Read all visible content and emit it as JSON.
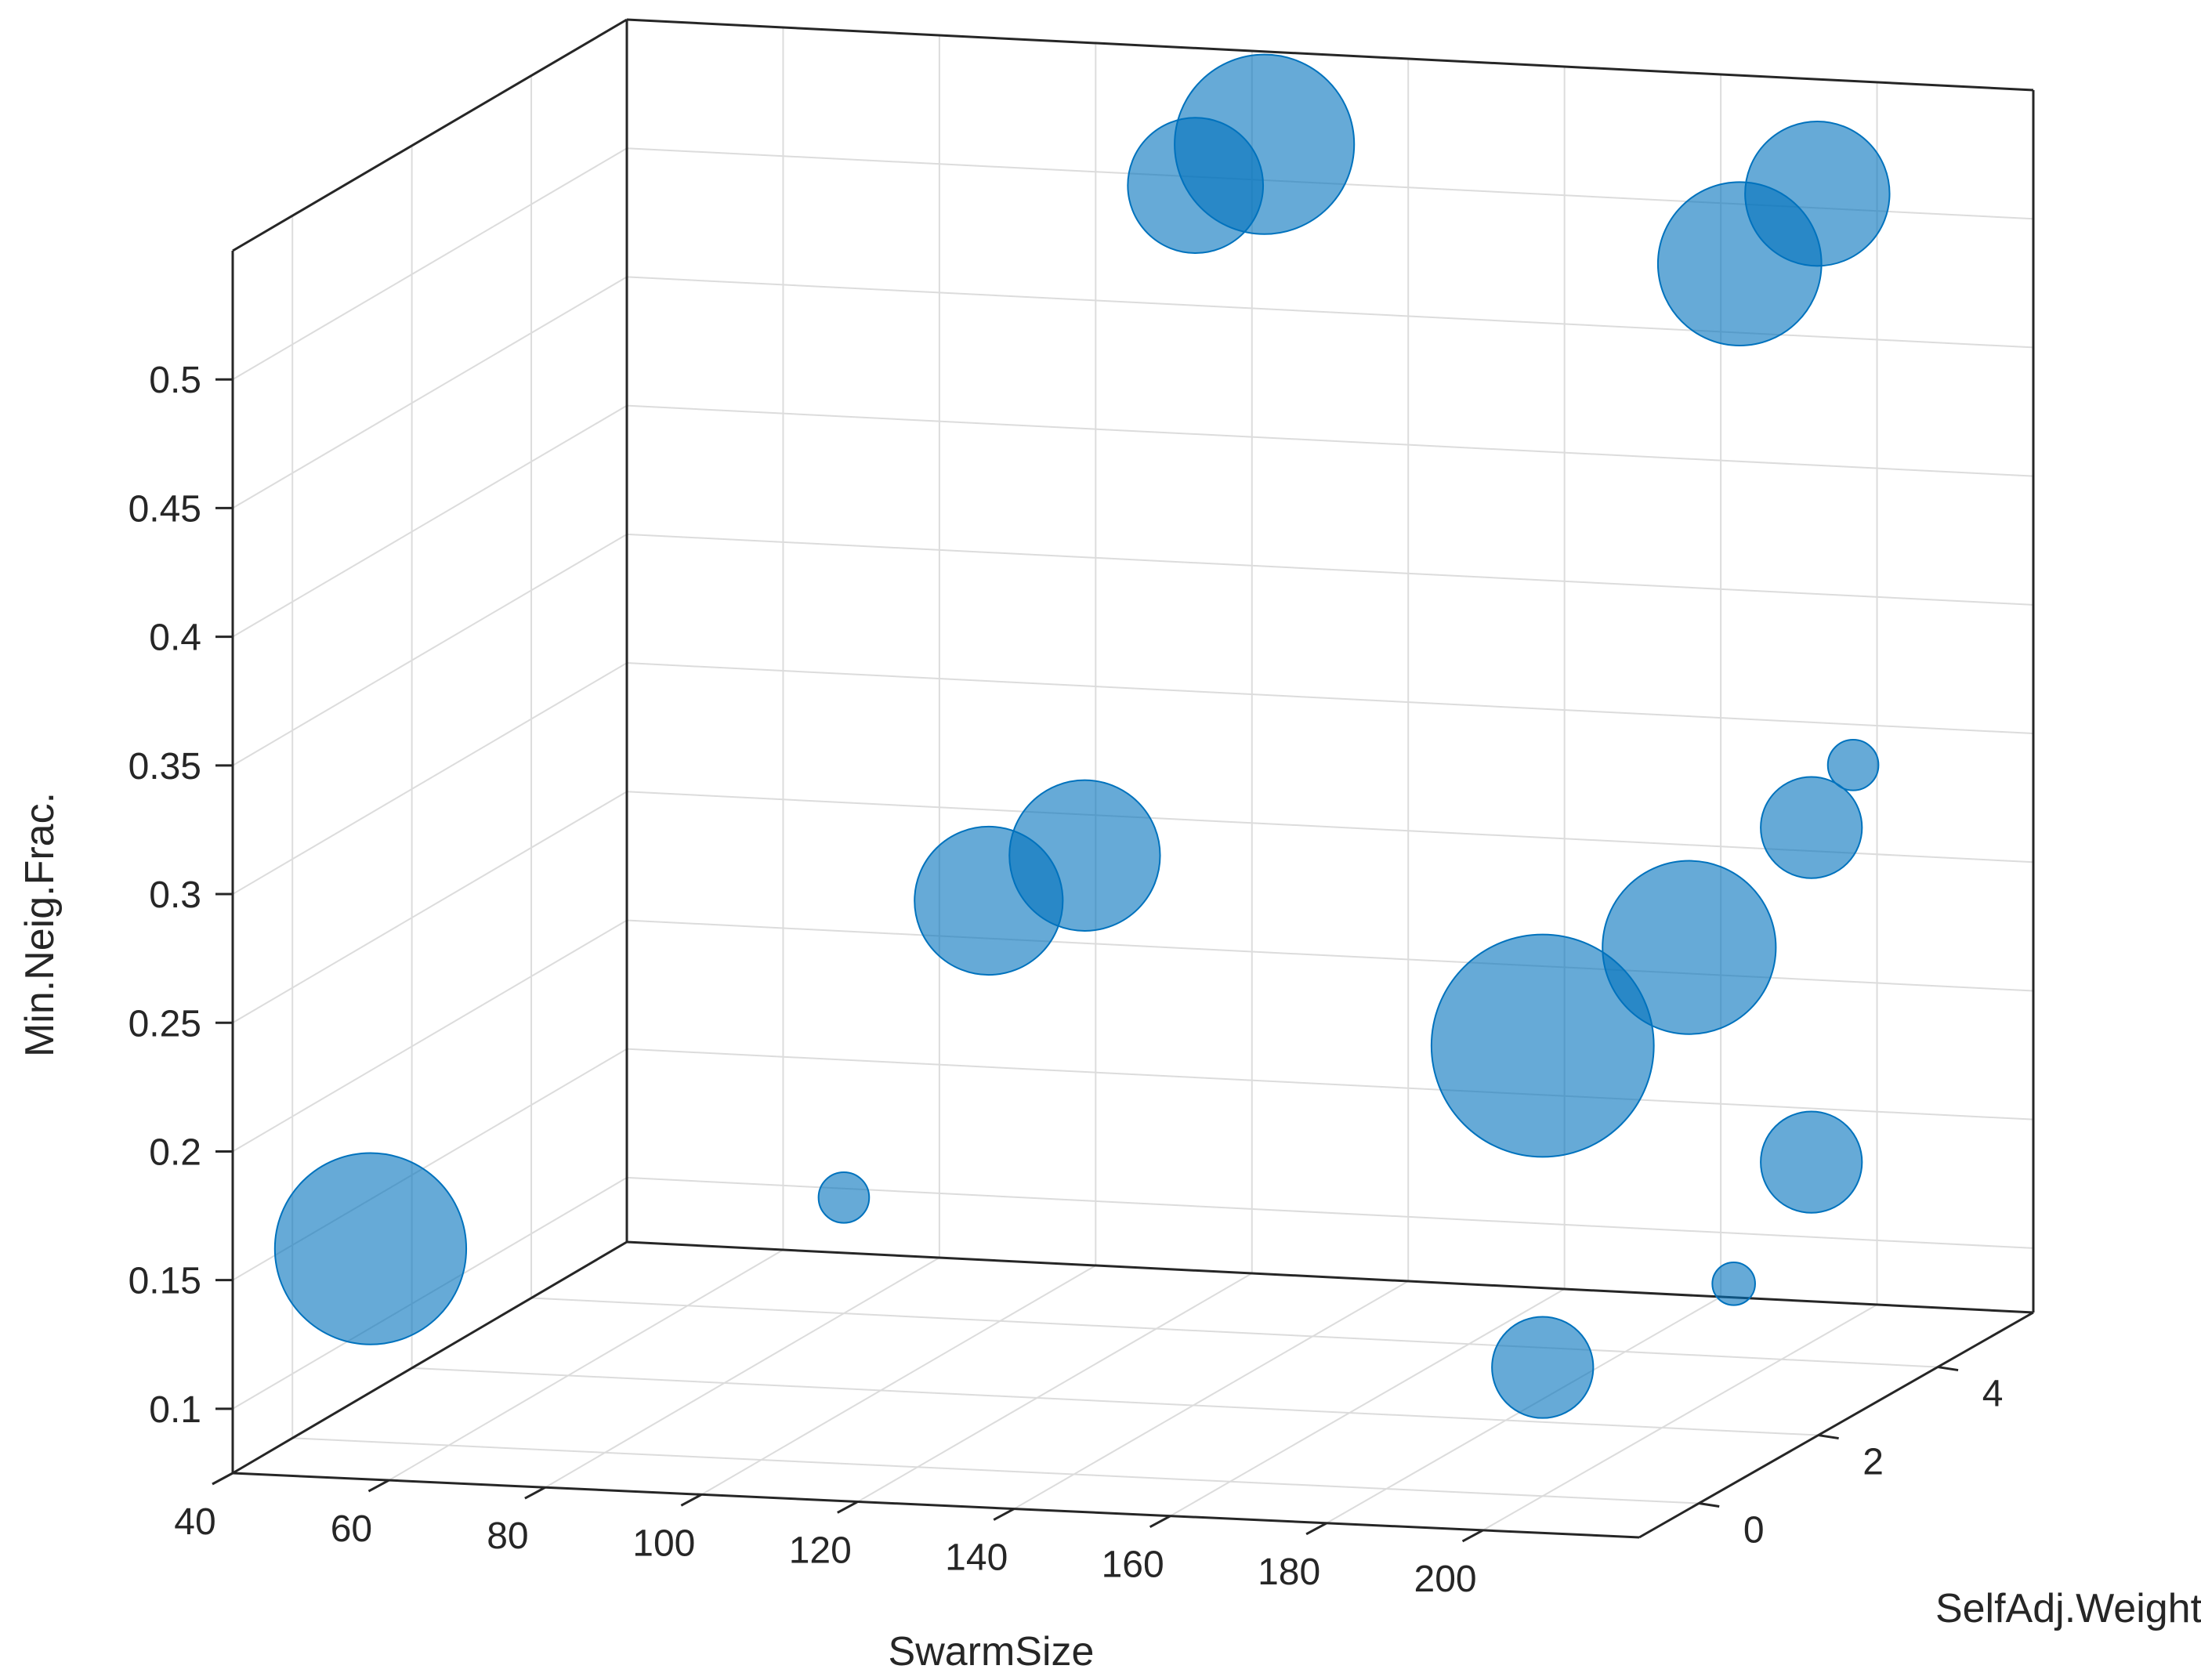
{
  "chart_data": {
    "type": "scatter",
    "subtype": "3d-bubble",
    "xlabel": "SwarmSize",
    "ylabel": "SelfAdj.Weight",
    "zlabel": "Min.Neig.Frac.",
    "x_ticks": [
      "40",
      "60",
      "80",
      "100",
      "120",
      "140",
      "160",
      "180",
      "200"
    ],
    "y_ticks": [
      "0",
      "2",
      "4"
    ],
    "z_ticks": [
      "0.1",
      "0.15",
      "0.2",
      "0.25",
      "0.3",
      "0.35",
      "0.4",
      "0.45",
      "0.5"
    ],
    "grid": true,
    "colors": {
      "marker_fill": "#0072BD",
      "marker_edge": "#0072BD",
      "axis": "#262626",
      "grid": "#dcdcdc"
    },
    "points": [
      {
        "x": 50,
        "y": 0,
        "z": 0.15,
        "size": 1.0
      },
      {
        "x": 80,
        "y": 4,
        "z": 0.12,
        "size": 0.07
      },
      {
        "x": 200,
        "y": 0,
        "z": 0.125,
        "size": 0.28
      },
      {
        "x": 200,
        "y": 3.2,
        "z": 0.115,
        "size": 0.05
      },
      {
        "x": 200,
        "y": 4.5,
        "z": 0.145,
        "size": 0.28
      },
      {
        "x": 110,
        "y": 2.5,
        "z": 0.26,
        "size": 0.6
      },
      {
        "x": 120,
        "y": 2.8,
        "z": 0.275,
        "size": 0.62
      },
      {
        "x": 200,
        "y": 0,
        "z": 0.25,
        "size": 1.35
      },
      {
        "x": 205,
        "y": 1.8,
        "z": 0.265,
        "size": 0.82
      },
      {
        "x": 200,
        "y": 4.5,
        "z": 0.275,
        "size": 0.28
      },
      {
        "x": 200,
        "y": 5.2,
        "z": 0.29,
        "size": 0.07
      },
      {
        "x": 125,
        "y": 4,
        "z": 0.52,
        "size": 0.5
      },
      {
        "x": 130,
        "y": 4.5,
        "z": 0.53,
        "size": 0.88
      },
      {
        "x": 200,
        "y": 3.3,
        "z": 0.51,
        "size": 0.73
      },
      {
        "x": 200,
        "y": 4.6,
        "z": 0.52,
        "size": 0.57
      }
    ]
  }
}
